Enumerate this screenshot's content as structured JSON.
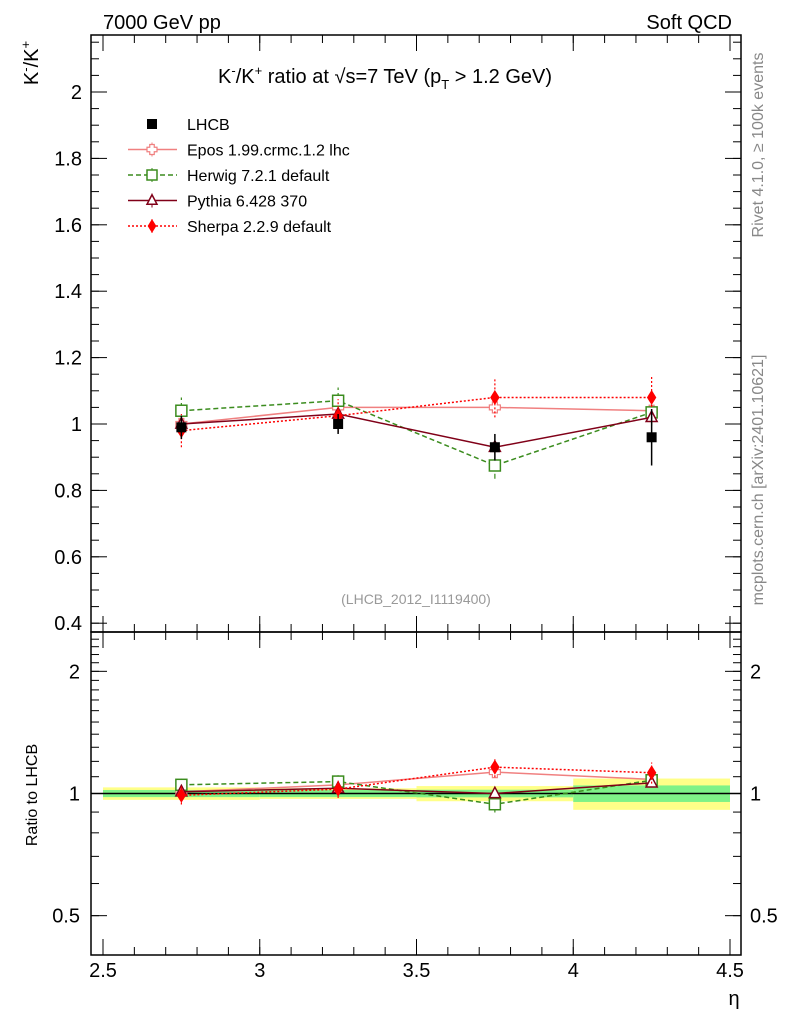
{
  "header": {
    "left": "7000 GeV pp",
    "right": "Soft QCD"
  },
  "side": {
    "rivet": "Rivet 4.1.0, ≥ 100k events",
    "mcplots": "mcplots.cern.ch [arXiv:2401.10621]"
  },
  "chart_data": {
    "type": "scatter",
    "title": "K⁻/K⁺ ratio at √s=7 TeV (p_T > 1.2 GeV)",
    "title_parts": {
      "a": "K",
      "b": "/K",
      "c": " ratio at ",
      "d": "s=7 TeV (p",
      "e": "T",
      "f": " > 1.2 GeV)"
    },
    "analysis_label": "(LHCB_2012_I1119400)",
    "xlabel": "η",
    "ylabel_main": "K⁻/K⁺",
    "ylabel_ratio": "Ratio to LHCB",
    "xlim": [
      2.5,
      4.5
    ],
    "ylim_main": [
      0.37,
      2.18
    ],
    "ylim_ratio": [
      0.4,
      2.5
    ],
    "x_ticks": [
      "2.5",
      "3",
      "3.5",
      "4",
      "4.5"
    ],
    "y_ticks_main": [
      "0.4",
      "0.6",
      "0.8",
      "1",
      "1.2",
      "1.4",
      "1.6",
      "1.8",
      "2"
    ],
    "y_ticks_ratio": [
      "0.5",
      "1",
      "2"
    ],
    "x": [
      2.75,
      3.25,
      3.75,
      4.25
    ],
    "bins": [
      [
        2.5,
        3.0
      ],
      [
        3.0,
        3.5
      ],
      [
        3.5,
        4.0
      ],
      [
        4.0,
        4.5
      ]
    ],
    "data": {
      "name": "LHCB",
      "values": [
        0.99,
        1.0,
        0.93,
        0.96
      ],
      "stat_err": [
        0.02,
        0.02,
        0.02,
        0.045
      ],
      "total_err": [
        0.035,
        0.03,
        0.04,
        0.085
      ],
      "color": "#000000"
    },
    "series": [
      {
        "name": "Epos 1.99.crmc.1.2 lhc",
        "values": [
          1.0,
          1.05,
          1.05,
          1.04
        ],
        "errors": [
          0.01,
          0.01,
          0.01,
          0.01
        ],
        "color": "#f08080",
        "marker": "open-cross",
        "dash": ""
      },
      {
        "name": "Herwig 7.2.1 default",
        "values": [
          1.04,
          1.07,
          0.875,
          1.035
        ],
        "errors": [
          0.04,
          0.04,
          0.04,
          0.04
        ],
        "color": "#3b8c1e",
        "marker": "open-square",
        "dash": "5,3"
      },
      {
        "name": "Pythia 6.428 370",
        "values": [
          1.0,
          1.03,
          0.93,
          1.02
        ],
        "errors": [
          0.015,
          0.015,
          0.015,
          0.015
        ],
        "color": "#800018",
        "marker": "open-triangle",
        "dash": ""
      },
      {
        "name": "Sherpa 2.2.9 default",
        "values": [
          0.98,
          1.025,
          1.08,
          1.08
        ],
        "errors": [
          0.05,
          0.05,
          0.06,
          0.065
        ],
        "color": "#ff0000",
        "marker": "filled-diamond",
        "dash": "2,2"
      }
    ]
  }
}
